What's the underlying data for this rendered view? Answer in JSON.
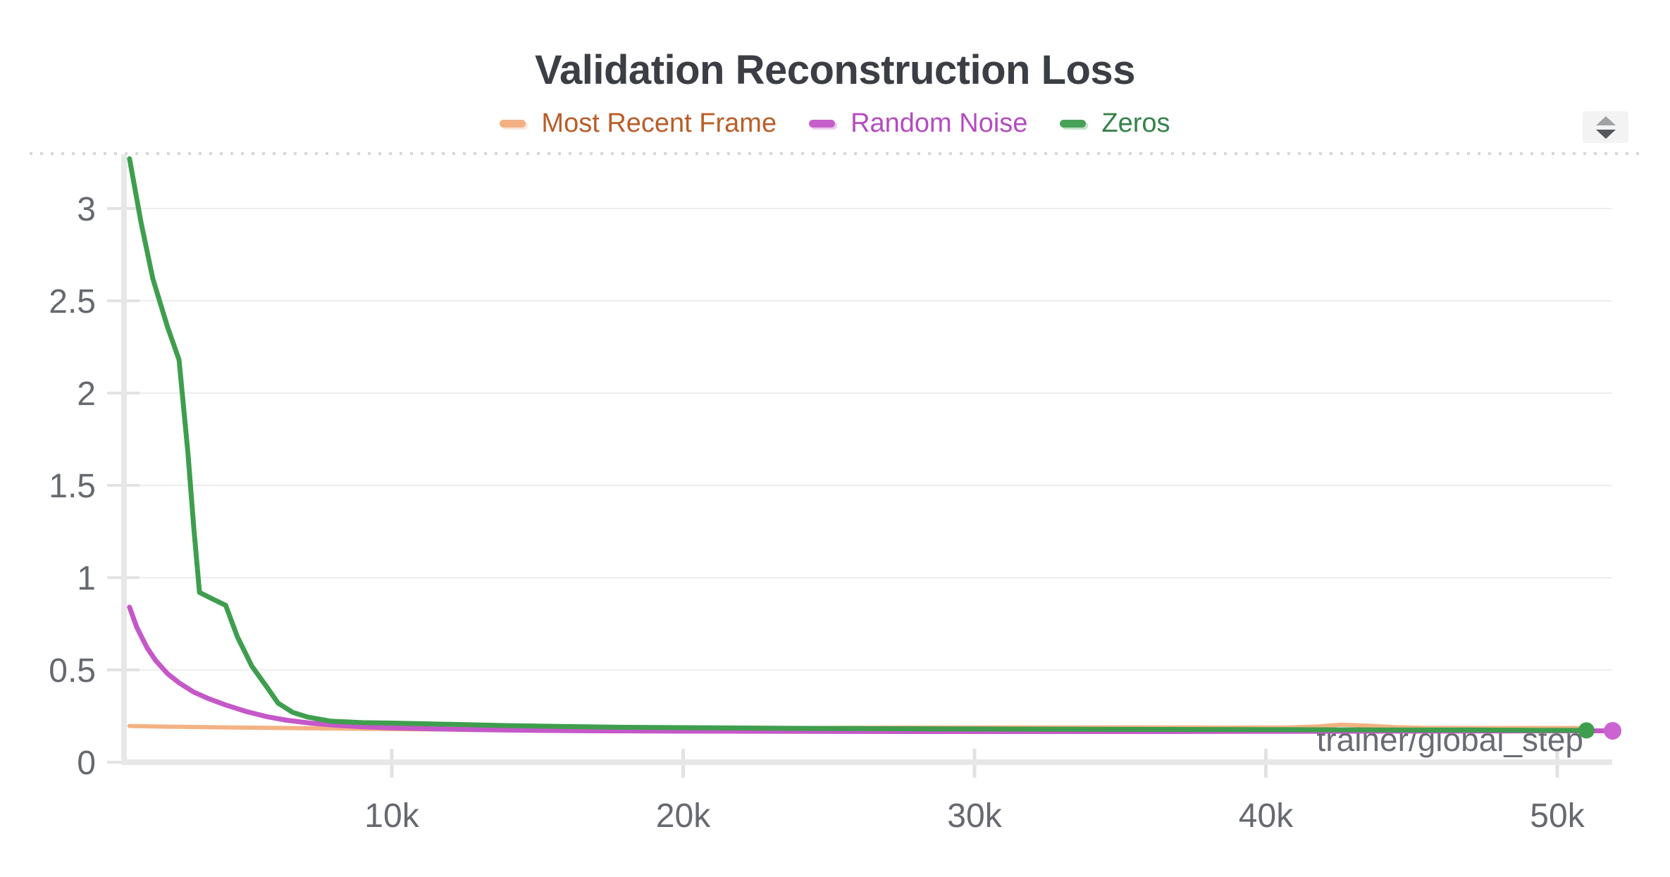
{
  "panel": {
    "title": "Validation Reconstruction Loss",
    "x_axis_label": "trainer/global_step"
  },
  "legend": {
    "items": [
      {
        "label": "Most Recent Frame",
        "swatch_color": "#f2b083",
        "text_color": "#b95d28"
      },
      {
        "label": "Random Noise",
        "swatch_color": "#c45ec9",
        "text_color": "#b44cc0"
      },
      {
        "label": "Zeros",
        "swatch_color": "#47a258",
        "text_color": "#35824a"
      }
    ]
  },
  "controls": {
    "stepper": {
      "up_icon": "triangle-up",
      "down_icon": "triangle-down"
    }
  },
  "colors": {
    "grid": "#ededed",
    "axis": "#e7e7e7",
    "tick": "#e2e2e2",
    "tick_label": "#66696f",
    "axis_title": "#696c74",
    "title_text": "#3b3e44"
  },
  "chart_data": {
    "type": "line",
    "title": "Validation Reconstruction Loss",
    "xlabel": "trainer/global_step",
    "ylabel": "",
    "xlim": [
      0,
      52600
    ],
    "ylim": [
      0,
      3.37
    ],
    "grid": "horizontal",
    "legend_position": "top-center",
    "x_ticks": [
      {
        "value": 10000,
        "label": "10k"
      },
      {
        "value": 20000,
        "label": "20k"
      },
      {
        "value": 30000,
        "label": "30k"
      },
      {
        "value": 40000,
        "label": "40k"
      },
      {
        "value": 50000,
        "label": "50k"
      }
    ],
    "y_ticks": [
      {
        "value": 0,
        "label": "0"
      },
      {
        "value": 0.5,
        "label": "0.5"
      },
      {
        "value": 1,
        "label": "1"
      },
      {
        "value": 1.5,
        "label": "1.5"
      },
      {
        "value": 2,
        "label": "2"
      },
      {
        "value": 2.5,
        "label": "2.5"
      },
      {
        "value": 3,
        "label": "3"
      }
    ],
    "series": [
      {
        "name": "Most Recent Frame",
        "color": "#f3b283",
        "line_width": 6,
        "end_dot": false,
        "points": [
          [
            1000,
            0.196
          ],
          [
            2500,
            0.192
          ],
          [
            4500,
            0.188
          ],
          [
            7000,
            0.184
          ],
          [
            9000,
            0.181
          ],
          [
            11000,
            0.178
          ],
          [
            13000,
            0.177
          ],
          [
            15000,
            0.177
          ],
          [
            18000,
            0.18
          ],
          [
            21000,
            0.183
          ],
          [
            24000,
            0.185
          ],
          [
            27000,
            0.187
          ],
          [
            30000,
            0.188
          ],
          [
            33000,
            0.188
          ],
          [
            36000,
            0.188
          ],
          [
            39000,
            0.187
          ],
          [
            40800,
            0.188
          ],
          [
            41800,
            0.194
          ],
          [
            42600,
            0.203
          ],
          [
            43500,
            0.198
          ],
          [
            44400,
            0.19
          ],
          [
            45400,
            0.186
          ],
          [
            47000,
            0.185
          ],
          [
            48500,
            0.185
          ],
          [
            50700,
            0.185
          ]
        ]
      },
      {
        "name": "Random Noise",
        "color": "#c558c8",
        "line_width": 7,
        "end_dot": true,
        "dot_color": "#cb64d1",
        "dot_radius": 12.5,
        "points": [
          [
            1000,
            0.84
          ],
          [
            1250,
            0.73
          ],
          [
            1600,
            0.62
          ],
          [
            1900,
            0.55
          ],
          [
            2300,
            0.48
          ],
          [
            2700,
            0.43
          ],
          [
            3200,
            0.38
          ],
          [
            3700,
            0.345
          ],
          [
            4300,
            0.31
          ],
          [
            5000,
            0.275
          ],
          [
            5700,
            0.247
          ],
          [
            6400,
            0.227
          ],
          [
            7200,
            0.212
          ],
          [
            8100,
            0.2
          ],
          [
            9000,
            0.192
          ],
          [
            10000,
            0.186
          ],
          [
            11500,
            0.18
          ],
          [
            13000,
            0.176
          ],
          [
            15000,
            0.172
          ],
          [
            17000,
            0.17
          ],
          [
            20000,
            0.168
          ],
          [
            24000,
            0.167
          ],
          [
            28000,
            0.166
          ],
          [
            32000,
            0.166
          ],
          [
            36000,
            0.166
          ],
          [
            40000,
            0.167
          ],
          [
            44000,
            0.168
          ],
          [
            48000,
            0.169
          ],
          [
            51900,
            0.17
          ]
        ]
      },
      {
        "name": "Zeros",
        "color": "#3f9e4e",
        "line_width": 7,
        "end_dot": true,
        "dot_color": "#3f9e4e",
        "dot_radius": 11.5,
        "points": [
          [
            1000,
            3.27
          ],
          [
            1400,
            2.92
          ],
          [
            1800,
            2.62
          ],
          [
            2300,
            2.36
          ],
          [
            2700,
            2.18
          ],
          [
            3000,
            1.68
          ],
          [
            3200,
            1.28
          ],
          [
            3400,
            0.92
          ],
          [
            3900,
            0.88
          ],
          [
            4300,
            0.85
          ],
          [
            4700,
            0.68
          ],
          [
            5200,
            0.52
          ],
          [
            5700,
            0.41
          ],
          [
            6100,
            0.32
          ],
          [
            6600,
            0.27
          ],
          [
            7100,
            0.245
          ],
          [
            7900,
            0.222
          ],
          [
            9000,
            0.214
          ],
          [
            10000,
            0.212
          ],
          [
            12000,
            0.205
          ],
          [
            14000,
            0.198
          ],
          [
            16000,
            0.193
          ],
          [
            18000,
            0.189
          ],
          [
            20000,
            0.187
          ],
          [
            23000,
            0.184
          ],
          [
            26000,
            0.182
          ],
          [
            29000,
            0.18
          ],
          [
            32000,
            0.179
          ],
          [
            35000,
            0.178
          ],
          [
            38000,
            0.177
          ],
          [
            41000,
            0.176
          ],
          [
            44000,
            0.175
          ],
          [
            47000,
            0.174
          ],
          [
            49000,
            0.173
          ],
          [
            51000,
            0.172
          ]
        ]
      }
    ]
  }
}
